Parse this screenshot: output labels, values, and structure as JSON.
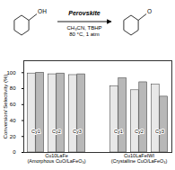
{
  "chart_data": {
    "type": "bar",
    "categories": [
      "Cu10LaFe\n(Amorphous CuO/LaFeO₃)",
      "Cu10LaFeIWI\n(Crystalline CuO/LaFeO₃)"
    ],
    "cycles": [
      "Cy1",
      "Cy2",
      "Cy3"
    ],
    "series": [
      {
        "name": "Conversion",
        "color": "#e8e8e8",
        "values": [
          [
            99,
            98,
            97
          ],
          [
            83,
            78,
            85
          ]
        ]
      },
      {
        "name": "Selectivity",
        "color": "#b8b8b8",
        "values": [
          [
            100,
            99,
            98
          ],
          [
            93,
            88,
            70
          ]
        ]
      }
    ],
    "ylabel": "Conversion/ Selectivity (%)",
    "ylim": [
      0,
      115
    ],
    "yticks": [
      0,
      20,
      40,
      60,
      80,
      100
    ],
    "legend": "upper center",
    "grid": false,
    "annotations": [
      "Perovskite",
      "CH₃CN, TBHP\n80 °C, 1 atm",
      "OH",
      "O"
    ]
  }
}
